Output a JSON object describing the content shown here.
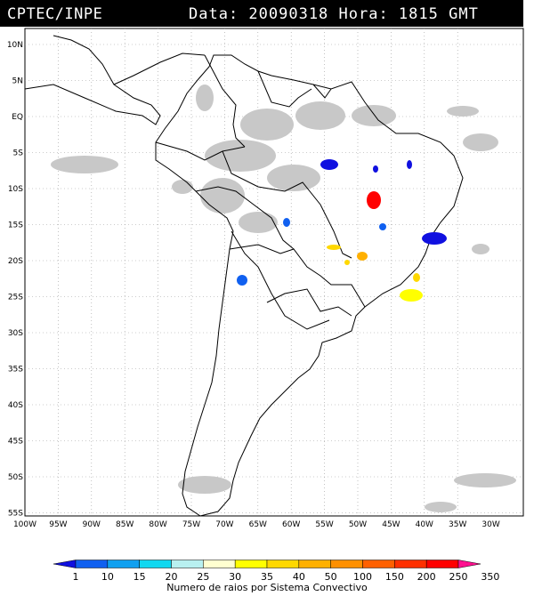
{
  "header": {
    "agency": "CPTEC/INPE",
    "datetime": "Data: 20090318 Hora: 1815 GMT"
  },
  "map": {
    "lat_labels": [
      "10N",
      "5N",
      "EQ",
      "5S",
      "10S",
      "15S",
      "20S",
      "25S",
      "30S",
      "35S",
      "40S",
      "45S",
      "50S",
      "55S"
    ],
    "lon_labels": [
      "100W",
      "95W",
      "90W",
      "85W",
      "80W",
      "75W",
      "70W",
      "65W",
      "60W",
      "55W",
      "50W",
      "45W",
      "40W",
      "35W",
      "30W"
    ]
  },
  "colorbar": {
    "ticks": [
      "1",
      "10",
      "15",
      "20",
      "25",
      "30",
      "35",
      "40",
      "50",
      "100",
      "150",
      "200",
      "250",
      "350"
    ],
    "colors": [
      "#1010e0",
      "#1060f0",
      "#10a0f0",
      "#10d8f0",
      "#b8f0f0",
      "#ffffd0",
      "#ffff00",
      "#ffd800",
      "#ffb000",
      "#ff9000",
      "#ff6000",
      "#ff3000",
      "#ff0000",
      "#ff1090"
    ],
    "caption": "Numero de raios por Sistema Convectivo"
  }
}
